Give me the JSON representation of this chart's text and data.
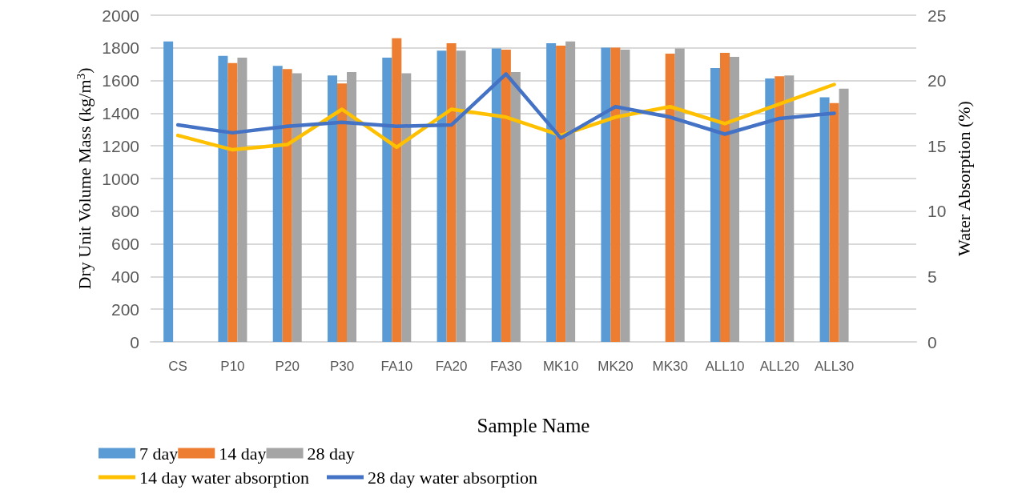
{
  "chart_data": {
    "type": "bar",
    "xlabel": "Sample Name",
    "ylabel": "Dry Unit Volume Mass (kg/m$^{3}$)",
    "y2label": "Water Absorption (%)",
    "categories": [
      "CS",
      "P10",
      "P20",
      "P30",
      "FA10",
      "FA20",
      "FA30",
      "MK10",
      "MK20",
      "MK30",
      "ALL10",
      "ALL20",
      "ALL30",
      null
    ],
    "series": [
      {
        "name": "7 day",
        "color": "#5b9bd5",
        "values": [
          1840,
          1751,
          1690,
          1631,
          1740,
          1783,
          1796,
          1828,
          1801,
          null,
          1676,
          1613,
          1498,
          null
        ]
      },
      {
        "name": "14 day",
        "color": "#ed7d31",
        "values": [
          null,
          1707,
          1670,
          1582,
          1859,
          1828,
          1789,
          1814,
          1801,
          1765,
          1770,
          1626,
          1462,
          null
        ]
      },
      {
        "name": "28 day",
        "color": "#a5a5a5",
        "values": [
          null,
          1740,
          1645,
          1652,
          1645,
          1783,
          1652,
          1840,
          1789,
          1796,
          1745,
          1631,
          1550,
          null
        ]
      },
      {
        "name": "14 day water absorption",
        "type": "line",
        "axis": "y2",
        "color": "#ffc000",
        "values": [
          15.8,
          14.7,
          15.1,
          17.8,
          14.9,
          17.8,
          17.2,
          15.8,
          17.2,
          18.0,
          16.7,
          18.2,
          19.7,
          null
        ]
      },
      {
        "name": "28 day water absorption",
        "type": "line",
        "axis": "y2",
        "color": "#4472c4",
        "values": [
          16.6,
          16.0,
          16.5,
          16.8,
          16.5,
          16.6,
          20.5,
          15.6,
          18.0,
          17.2,
          15.9,
          17.1,
          17.5,
          null
        ]
      }
    ],
    "ylim": [
      0,
      2000
    ],
    "yticks": [
      0,
      200,
      400,
      600,
      800,
      1000,
      1200,
      1400,
      1600,
      1800,
      2000
    ],
    "y2lim": [
      0,
      25
    ],
    "y2ticks": [
      0,
      5,
      10,
      15,
      20,
      25
    ],
    "grid": "y",
    "legend": "bottom",
    "marker": "none",
    "line_style": "solid"
  }
}
